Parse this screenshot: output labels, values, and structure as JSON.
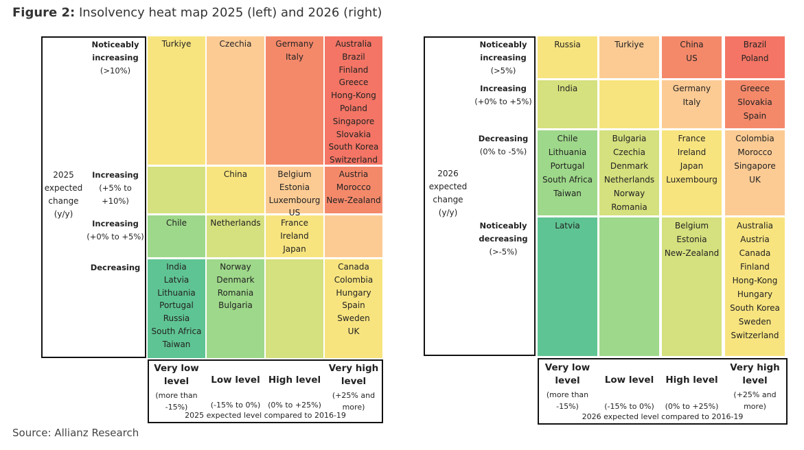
{
  "title": {
    "prefix": "Figure 2:",
    "text": "Insolvency heat map 2025 (left) and 2026 (right)"
  },
  "source": "Source: Allianz Research",
  "maps": [
    {
      "axis_label": "2025 expected change (y/y)",
      "rows": [
        {
          "label": "Noticeably increasing",
          "range": "(>10%)"
        },
        {
          "label": "Increasing",
          "range": "(+5% to +10%)"
        },
        {
          "label": "Increasing",
          "range": "(+0% to +5%)"
        },
        {
          "label": "Decreasing"
        }
      ],
      "columns": [
        {
          "label": "Very low level",
          "range": "(more than -15%)"
        },
        {
          "label": "Low level",
          "range": "(-15% to 0%)"
        },
        {
          "label": "High level",
          "range": "(0% to +25%)"
        },
        {
          "label": "Very high level",
          "range": "(+25% and more)"
        }
      ],
      "column_axis_label": "2025 expected level compared to 2016-19",
      "cells": [
        [
          {
            "color": "#f8e47f",
            "countries": [
              "Turkiye"
            ]
          },
          {
            "color": "#fccb94",
            "countries": [
              "Czechia"
            ]
          },
          {
            "color": "#f4896a",
            "countries": [
              "Germany",
              "Italy"
            ]
          },
          {
            "color": "#f47565",
            "countries": [
              "Australia",
              "Brazil",
              "Finland",
              "Greece",
              "Hong-Kong",
              "Poland",
              "Singapore",
              "Slovakia",
              "South Korea",
              "Switzerland"
            ]
          }
        ],
        [
          {
            "color": "#d5e07e",
            "countries": []
          },
          {
            "color": "#f8e47f",
            "countries": [
              "China"
            ]
          },
          {
            "color": "#fccb94",
            "countries": [
              "Belgium",
              "Estonia",
              "Luxembourg",
              "US"
            ]
          },
          {
            "color": "#f4896a",
            "countries": [
              "Austria",
              "Morocco",
              "New-Zealand"
            ]
          }
        ],
        [
          {
            "color": "#9ed88a",
            "countries": [
              "Chile"
            ]
          },
          {
            "color": "#d5e07e",
            "countries": [
              "Netherlands"
            ]
          },
          {
            "color": "#f8e47f",
            "countries": [
              "France",
              "Ireland",
              "Japan"
            ]
          },
          {
            "color": "#fccb94",
            "countries": []
          }
        ],
        [
          {
            "color": "#5fc493",
            "countries": [
              "India",
              "Latvia",
              "Lithuania",
              "Portugal",
              "Russia",
              "South Africa",
              "Taiwan"
            ]
          },
          {
            "color": "#9ed88a",
            "countries": [
              "Norway",
              "Denmark",
              "Romania",
              "Bulgaria"
            ]
          },
          {
            "color": "#d5e07e",
            "countries": []
          },
          {
            "color": "#f8e47f",
            "countries": [
              "Canada",
              "Colombia",
              "Hungary",
              "Spain",
              "Sweden",
              "UK"
            ]
          }
        ]
      ]
    },
    {
      "axis_label": "2026 expected change (y/y)",
      "rows": [
        {
          "label": "Noticeably increasing",
          "range": "(>5%)"
        },
        {
          "label": "Increasing",
          "range": "(+0% to +5%)"
        },
        {
          "label": "Decreasing",
          "range": "(0% to -5%)"
        },
        {
          "label": "Noticeably decreasing",
          "range": "(>-5%)"
        }
      ],
      "columns": [
        {
          "label": "Very low level",
          "range": "(more than -15%)"
        },
        {
          "label": "Low level",
          "range": "(-15% to 0%)"
        },
        {
          "label": "High level",
          "range": "(0% to +25%)"
        },
        {
          "label": "Very high level",
          "range": "(+25% and more)"
        }
      ],
      "column_axis_label": "2026 expected level compared to 2016-19",
      "cells": [
        [
          {
            "color": "#f8e47f",
            "countries": [
              "Russia"
            ]
          },
          {
            "color": "#fccb94",
            "countries": [
              "Turkiye"
            ]
          },
          {
            "color": "#f4896a",
            "countries": [
              "China",
              "US"
            ]
          },
          {
            "color": "#f47565",
            "countries": [
              "Brazil",
              "Poland"
            ]
          }
        ],
        [
          {
            "color": "#d5e07e",
            "countries": [
              "India"
            ]
          },
          {
            "color": "#f8e47f",
            "countries": []
          },
          {
            "color": "#fccb94",
            "countries": [
              "Germany",
              "Italy"
            ]
          },
          {
            "color": "#f4896a",
            "countries": [
              "Greece",
              "Slovakia",
              "Spain"
            ]
          }
        ],
        [
          {
            "color": "#9ed88a",
            "countries": [
              "Chile",
              "Lithuania",
              "Portugal",
              "South Africa",
              "Taiwan"
            ]
          },
          {
            "color": "#d5e07e",
            "countries": [
              "Bulgaria",
              "Czechia",
              "Denmark",
              "Netherlands",
              "Norway",
              "Romania"
            ]
          },
          {
            "color": "#f8e47f",
            "countries": [
              "France",
              "Ireland",
              "Japan",
              "Luxembourg"
            ]
          },
          {
            "color": "#fccb94",
            "countries": [
              "Colombia",
              "Morocco",
              "Singapore",
              "UK"
            ]
          }
        ],
        [
          {
            "color": "#5fc493",
            "countries": [
              "Latvia"
            ]
          },
          {
            "color": "#9ed88a",
            "countries": []
          },
          {
            "color": "#d5e07e",
            "countries": [
              "Belgium",
              "Estonia",
              "New-Zealand"
            ]
          },
          {
            "color": "#f8e47f",
            "countries": [
              "Australia",
              "Austria",
              "Canada",
              "Finland",
              "Hong-Kong",
              "Hungary",
              "South Korea",
              "Sweden",
              "Switzerland"
            ]
          }
        ]
      ]
    }
  ]
}
